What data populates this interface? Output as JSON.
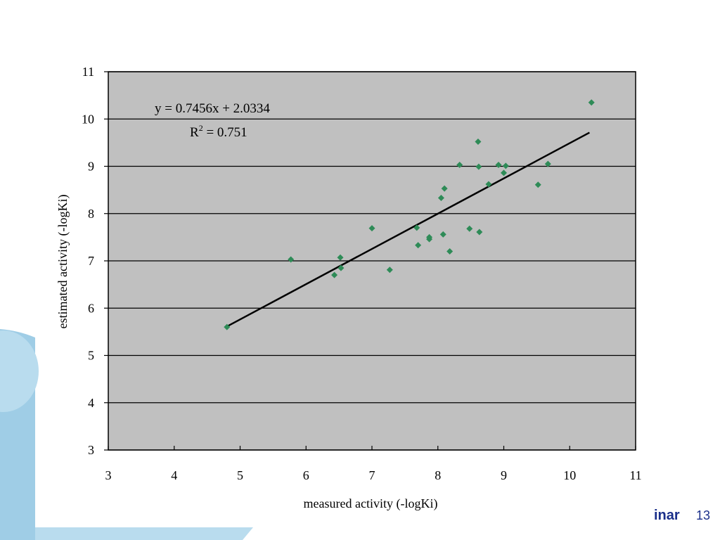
{
  "footer": {
    "text": "inar",
    "slide_number": "13"
  },
  "colors": {
    "plot_background": "#c0c0c0",
    "marker": "#2e8b57",
    "trendline": "#000000",
    "decor_light": "#b9dcee",
    "decor_mid": "#9fcde6",
    "footer_text": "#1a2f8a"
  },
  "chart_data": {
    "type": "scatter",
    "xlabel": "measured activity (-logKi)",
    "ylabel": "estimated activity (-logKi)",
    "xlim": [
      3,
      11
    ],
    "ylim": [
      3,
      11
    ],
    "xticks": [
      "3",
      "4",
      "5",
      "6",
      "7",
      "8",
      "9",
      "10",
      "11"
    ],
    "yticks": [
      "3",
      "4",
      "5",
      "6",
      "7",
      "8",
      "9",
      "10",
      "11"
    ],
    "grid": {
      "horizontal": true,
      "vertical": false
    },
    "marker": "diamond",
    "points": [
      [
        4.8,
        5.6
      ],
      [
        5.77,
        7.03
      ],
      [
        6.43,
        6.7
      ],
      [
        6.52,
        7.07
      ],
      [
        6.53,
        6.85
      ],
      [
        7.0,
        7.69
      ],
      [
        7.27,
        6.81
      ],
      [
        7.68,
        7.7
      ],
      [
        7.7,
        7.33
      ],
      [
        7.87,
        7.46
      ],
      [
        7.87,
        7.5
      ],
      [
        8.05,
        8.33
      ],
      [
        8.08,
        7.56
      ],
      [
        8.1,
        8.53
      ],
      [
        8.18,
        7.2
      ],
      [
        8.33,
        9.03
      ],
      [
        8.48,
        7.68
      ],
      [
        8.61,
        9.52
      ],
      [
        8.62,
        8.99
      ],
      [
        8.63,
        7.61
      ],
      [
        8.77,
        8.62
      ],
      [
        8.92,
        9.03
      ],
      [
        9.0,
        8.86
      ],
      [
        9.03,
        9.01
      ],
      [
        9.52,
        8.61
      ],
      [
        9.67,
        9.05
      ],
      [
        10.33,
        10.35
      ]
    ],
    "trendline": {
      "slope": 0.7456,
      "intercept": 2.0334,
      "x_range": [
        4.8,
        10.3
      ]
    },
    "annotations": {
      "equation": "y = 0.7456x + 2.0334",
      "r2_prefix": "R",
      "r2_sup": "2",
      "r2_value": " = 0.751"
    }
  }
}
